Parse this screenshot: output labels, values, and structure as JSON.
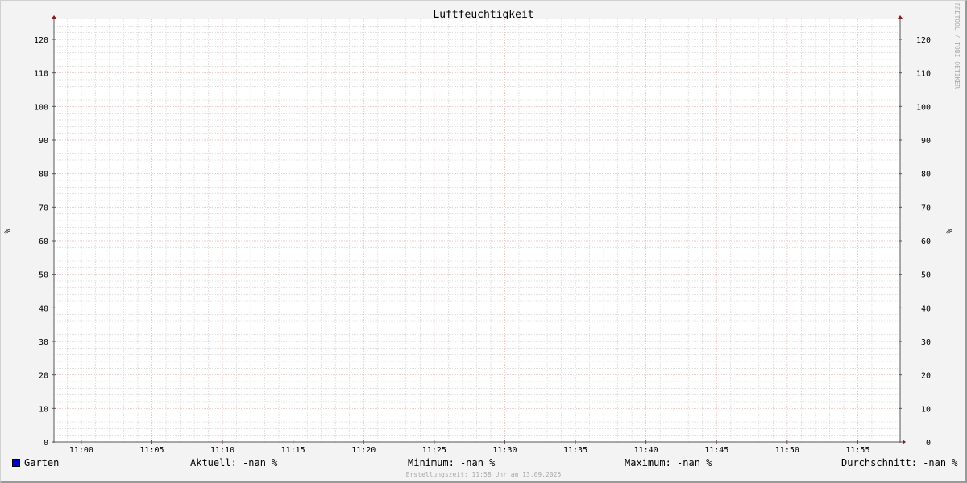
{
  "title": "Luftfeuchtigkeit",
  "watermark": "RRDTOOL / TOBI OETIKER",
  "colors": {
    "series": "#0000cc",
    "major_grid": "#e8b0b0",
    "minor_grid": "#cccccc",
    "axis": "#555555",
    "arrow": "#8b1a1a"
  },
  "chart_data": {
    "type": "line",
    "title": "Luftfeuchtigkeit",
    "ylabel": "%",
    "ylim": [
      0,
      126
    ],
    "yticks": [
      0,
      10,
      20,
      30,
      40,
      50,
      60,
      70,
      80,
      90,
      100,
      110,
      120
    ],
    "xticks": [
      "11:00",
      "11:05",
      "11:10",
      "11:15",
      "11:20",
      "11:25",
      "11:30",
      "11:35",
      "11:40",
      "11:45",
      "11:50",
      "11:55"
    ],
    "xrange": [
      "10:58",
      "11:58"
    ],
    "grid": true,
    "series": [
      {
        "name": "Garten",
        "values": []
      }
    ]
  },
  "legend": {
    "series_name": "Garten",
    "current": "Aktuell: -nan %",
    "minimum": "Minimum: -nan %",
    "maximum": "Maximum: -nan %",
    "average": "Durchschnitt: -nan %"
  },
  "footer": "Erstellungszeit: 11:58 Uhr am 13.09.2025"
}
